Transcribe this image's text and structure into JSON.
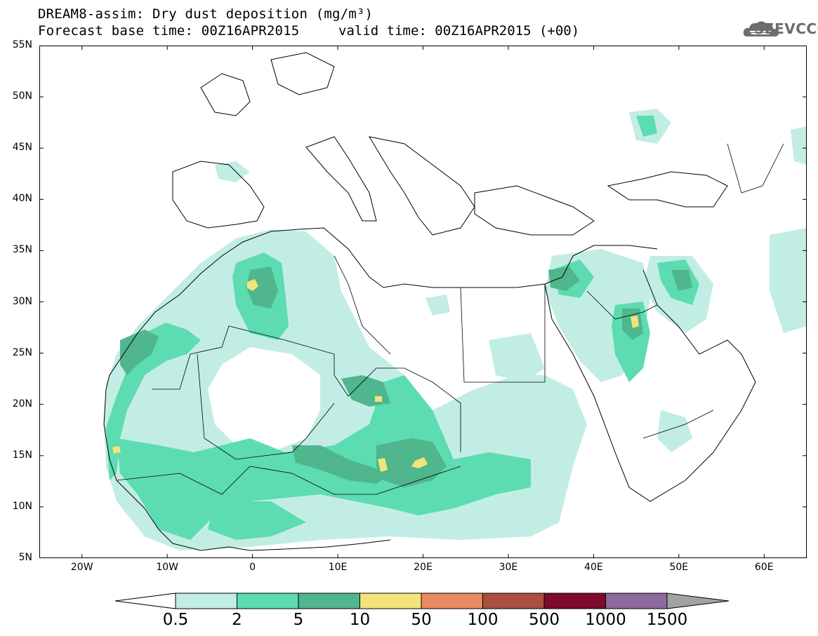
{
  "title_line1": "DREAM8-assim: Dry dust deposition (mg/m³)",
  "title_line2a": "Forecast base time: 00Z16APR2015",
  "title_line2b": "valid time: 00Z16APR2015 (+00)",
  "logo_text": "SEEVCCC",
  "lat_labels": [
    "55N",
    "50N",
    "45N",
    "40N",
    "35N",
    "30N",
    "25N",
    "20N",
    "15N",
    "10N",
    "5N"
  ],
  "lon_labels": [
    "20W",
    "10W",
    "0",
    "10E",
    "20E",
    "30E",
    "40E",
    "50E",
    "60E"
  ],
  "colorbar": {
    "labels": [
      "0.5",
      "2",
      "5",
      "10",
      "50",
      "100",
      "500",
      "1000",
      "1500"
    ],
    "colors": [
      "#c2ede4",
      "#5cdcb0",
      "#50b68e",
      "#f2e47a",
      "#ea8a62",
      "#aa4e40",
      "#7e0a2c",
      "#8c6a9c",
      "#a2a2a2"
    ]
  },
  "map_extent": {
    "lon_min": -25,
    "lon_max": 65,
    "lat_min": 5,
    "lat_max": 55
  }
}
